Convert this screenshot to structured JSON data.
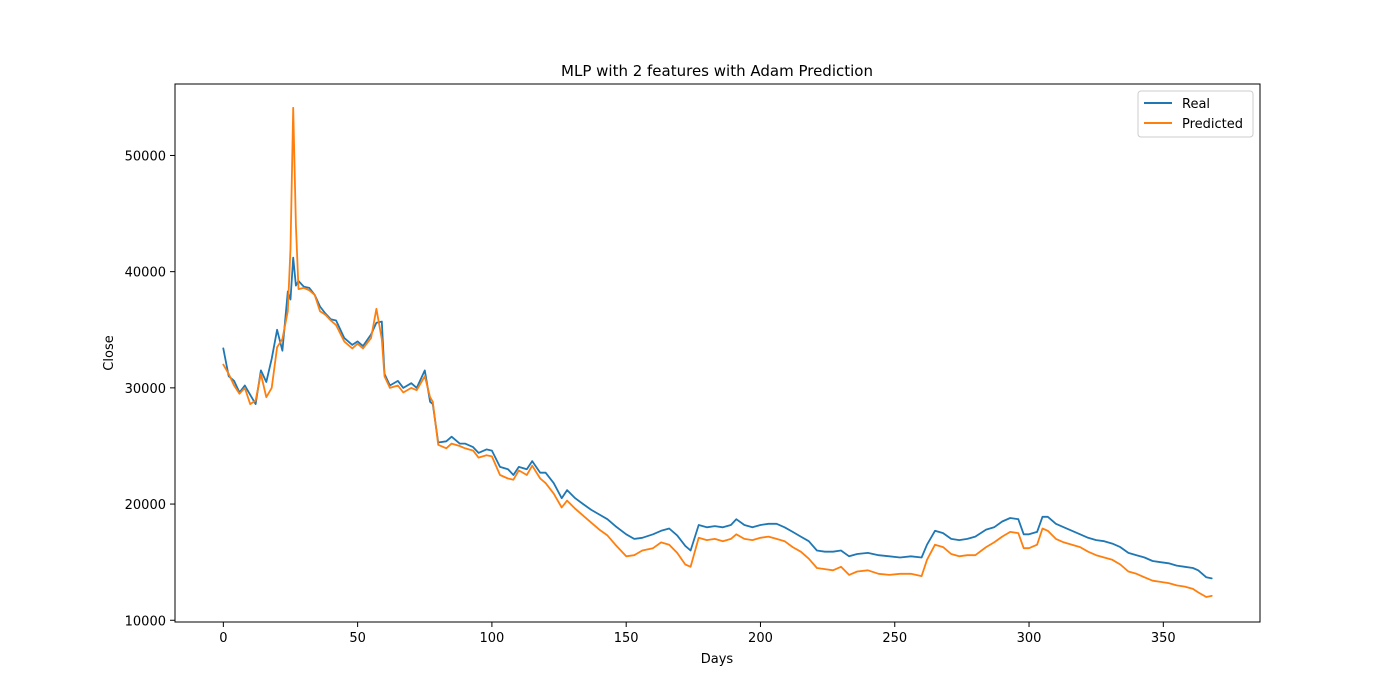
{
  "chart_data": {
    "type": "line",
    "title": "MLP with 2 features with Adam Prediction",
    "xlabel": "Days",
    "ylabel": "Close",
    "xlim": [
      -18,
      386
    ],
    "ylim": [
      9850,
      56150
    ],
    "xticks": [
      0,
      50,
      100,
      150,
      200,
      250,
      300,
      350
    ],
    "yticks": [
      10000,
      20000,
      30000,
      40000,
      50000
    ],
    "grid": false,
    "legend_position": "top-right",
    "series": [
      {
        "name": "Real",
        "color": "#1f77b4",
        "x": [
          0,
          2,
          4,
          6,
          8,
          10,
          12,
          14,
          16,
          18,
          20,
          22,
          24,
          25,
          26,
          27,
          28,
          30,
          32,
          34,
          36,
          38,
          40,
          42,
          45,
          48,
          50,
          52,
          55,
          57,
          59,
          60,
          62,
          65,
          67,
          70,
          72,
          75,
          77,
          78,
          80,
          83,
          85,
          88,
          90,
          93,
          95,
          98,
          100,
          103,
          106,
          108,
          110,
          113,
          115,
          118,
          120,
          123,
          126,
          128,
          131,
          134,
          137,
          140,
          143,
          146,
          150,
          153,
          156,
          160,
          163,
          166,
          169,
          172,
          174,
          177,
          180,
          183,
          186,
          189,
          191,
          194,
          197,
          200,
          203,
          206,
          209,
          212,
          215,
          218,
          221,
          224,
          227,
          230,
          233,
          236,
          240,
          244,
          248,
          252,
          256,
          260,
          262,
          265,
          268,
          271,
          274,
          277,
          280,
          284,
          287,
          290,
          293,
          296,
          298,
          300,
          303,
          305,
          307,
          310,
          313,
          316,
          319,
          322,
          325,
          328,
          331,
          334,
          337,
          340,
          343,
          346,
          349,
          352,
          355,
          358,
          361,
          363,
          366,
          368
        ],
        "y": [
          33400,
          31000,
          30600,
          29600,
          30200,
          29400,
          28600,
          31500,
          30500,
          32500,
          35000,
          33200,
          38300,
          37600,
          41200,
          38800,
          39200,
          38700,
          38600,
          38000,
          37000,
          36400,
          35900,
          35800,
          34300,
          33700,
          34000,
          33600,
          34600,
          35600,
          35700,
          31200,
          30200,
          30600,
          30000,
          30400,
          30000,
          31500,
          28800,
          28600,
          25300,
          25400,
          25800,
          25200,
          25200,
          24900,
          24400,
          24700,
          24600,
          23200,
          23000,
          22500,
          23200,
          23000,
          23700,
          22700,
          22700,
          21800,
          20500,
          21200,
          20500,
          20000,
          19500,
          19100,
          18700,
          18100,
          17400,
          17000,
          17100,
          17400,
          17700,
          17900,
          17300,
          16400,
          16000,
          18200,
          18000,
          18100,
          18000,
          18200,
          18700,
          18200,
          18000,
          18200,
          18300,
          18300,
          18000,
          17600,
          17200,
          16800,
          16000,
          15900,
          15900,
          16000,
          15500,
          15700,
          15800,
          15600,
          15500,
          15400,
          15500,
          15400,
          16500,
          17700,
          17500,
          17000,
          16900,
          17000,
          17200,
          17800,
          18000,
          18500,
          18800,
          18700,
          17400,
          17400,
          17600,
          18900,
          18900,
          18300,
          18000,
          17700,
          17400,
          17100,
          16900,
          16800,
          16600,
          16300,
          15800,
          15600,
          15400,
          15100,
          15000,
          14900,
          14700,
          14600,
          14500,
          14300,
          13700,
          13600
        ]
      },
      {
        "name": "Predicted",
        "color": "#ff7f0e",
        "x": [
          0,
          2,
          4,
          6,
          8,
          10,
          12,
          14,
          16,
          18,
          20,
          22,
          24,
          25,
          26,
          27,
          28,
          30,
          32,
          34,
          36,
          38,
          40,
          42,
          45,
          48,
          50,
          52,
          55,
          57,
          59,
          60,
          62,
          65,
          67,
          70,
          72,
          75,
          77,
          78,
          80,
          83,
          85,
          88,
          90,
          93,
          95,
          98,
          100,
          103,
          106,
          108,
          110,
          113,
          115,
          118,
          120,
          123,
          126,
          128,
          131,
          134,
          137,
          140,
          143,
          146,
          150,
          153,
          156,
          160,
          163,
          166,
          169,
          172,
          174,
          177,
          180,
          183,
          186,
          189,
          191,
          194,
          197,
          200,
          203,
          206,
          209,
          212,
          215,
          218,
          221,
          224,
          227,
          230,
          233,
          236,
          240,
          244,
          248,
          252,
          256,
          260,
          262,
          265,
          268,
          271,
          274,
          277,
          280,
          284,
          287,
          290,
          293,
          296,
          298,
          300,
          303,
          305,
          307,
          310,
          313,
          316,
          319,
          322,
          325,
          328,
          331,
          334,
          337,
          340,
          343,
          346,
          349,
          352,
          355,
          358,
          361,
          363,
          366,
          368
        ],
        "y": [
          32000,
          31200,
          30200,
          29500,
          30000,
          28600,
          28900,
          31200,
          29200,
          30000,
          33500,
          34200,
          36600,
          42000,
          54100,
          44000,
          38500,
          38600,
          38400,
          38000,
          36600,
          36300,
          35800,
          35400,
          34000,
          33400,
          33800,
          33400,
          34300,
          36800,
          34200,
          31000,
          30000,
          30200,
          29600,
          30000,
          29800,
          31000,
          29200,
          28800,
          25100,
          24800,
          25200,
          25000,
          24800,
          24600,
          24000,
          24200,
          24100,
          22500,
          22200,
          22100,
          22900,
          22500,
          23300,
          22200,
          21800,
          20900,
          19700,
          20300,
          19600,
          19000,
          18400,
          17800,
          17300,
          16500,
          15500,
          15600,
          16000,
          16200,
          16700,
          16500,
          15800,
          14800,
          14600,
          17100,
          16900,
          17000,
          16800,
          17000,
          17400,
          17000,
          16900,
          17100,
          17200,
          17000,
          16800,
          16300,
          15900,
          15300,
          14500,
          14400,
          14300,
          14600,
          13900,
          14200,
          14300,
          14000,
          13900,
          14000,
          14000,
          13800,
          15200,
          16500,
          16300,
          15700,
          15500,
          15600,
          15600,
          16300,
          16700,
          17200,
          17600,
          17500,
          16200,
          16200,
          16500,
          17900,
          17700,
          17000,
          16700,
          16500,
          16300,
          15900,
          15600,
          15400,
          15200,
          14800,
          14200,
          14000,
          13700,
          13400,
          13300,
          13200,
          13000,
          12900,
          12700,
          12400,
          12000,
          12100
        ]
      }
    ]
  }
}
